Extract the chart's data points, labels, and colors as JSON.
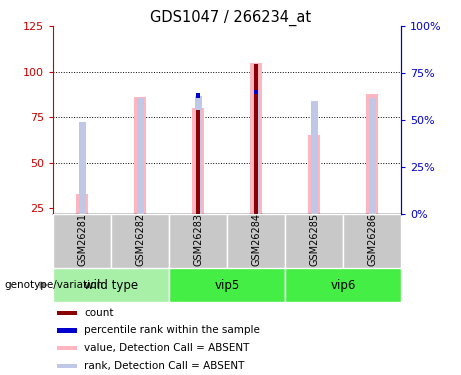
{
  "title": "GDS1047 / 266234_at",
  "samples": [
    "GSM26281",
    "GSM26282",
    "GSM26283",
    "GSM26284",
    "GSM26285",
    "GSM26286"
  ],
  "value_absent": [
    33,
    86,
    80,
    105,
    65,
    88
  ],
  "rank_absent": [
    49,
    62,
    63,
    65,
    60,
    62
  ],
  "count": [
    0,
    0,
    79,
    104,
    0,
    0
  ],
  "percentile": [
    0,
    0,
    63,
    65,
    0,
    0
  ],
  "ylim_left": [
    22,
    125
  ],
  "ylim_right": [
    0,
    100
  ],
  "yticks_left": [
    25,
    50,
    75,
    100,
    125
  ],
  "yticks_right": [
    0,
    25,
    50,
    75,
    100
  ],
  "color_count": "#8B0000",
  "color_percentile": "#0000CC",
  "color_value_absent": "#FFB6C1",
  "color_rank_absent": "#C0C8E8",
  "bg_label_row": "#C8C8C8",
  "bg_group_wt": "#A8F0A8",
  "bg_group_vip56": "#44EE44",
  "left_axis_color": "#CC0000",
  "right_axis_color": "#0000CC",
  "genotype_label": "genotype/variation",
  "group_spans": [
    [
      -0.5,
      1.5,
      "wild type",
      "#A8F0A8"
    ],
    [
      1.5,
      3.5,
      "vip5",
      "#44EE44"
    ],
    [
      3.5,
      5.5,
      "vip6",
      "#44EE44"
    ]
  ],
  "legend_items": [
    [
      "#8B0000",
      "count"
    ],
    [
      "#0000CC",
      "percentile rank within the sample"
    ],
    [
      "#FFB6C1",
      "value, Detection Call = ABSENT"
    ],
    [
      "#C0C8E8",
      "rank, Detection Call = ABSENT"
    ]
  ]
}
